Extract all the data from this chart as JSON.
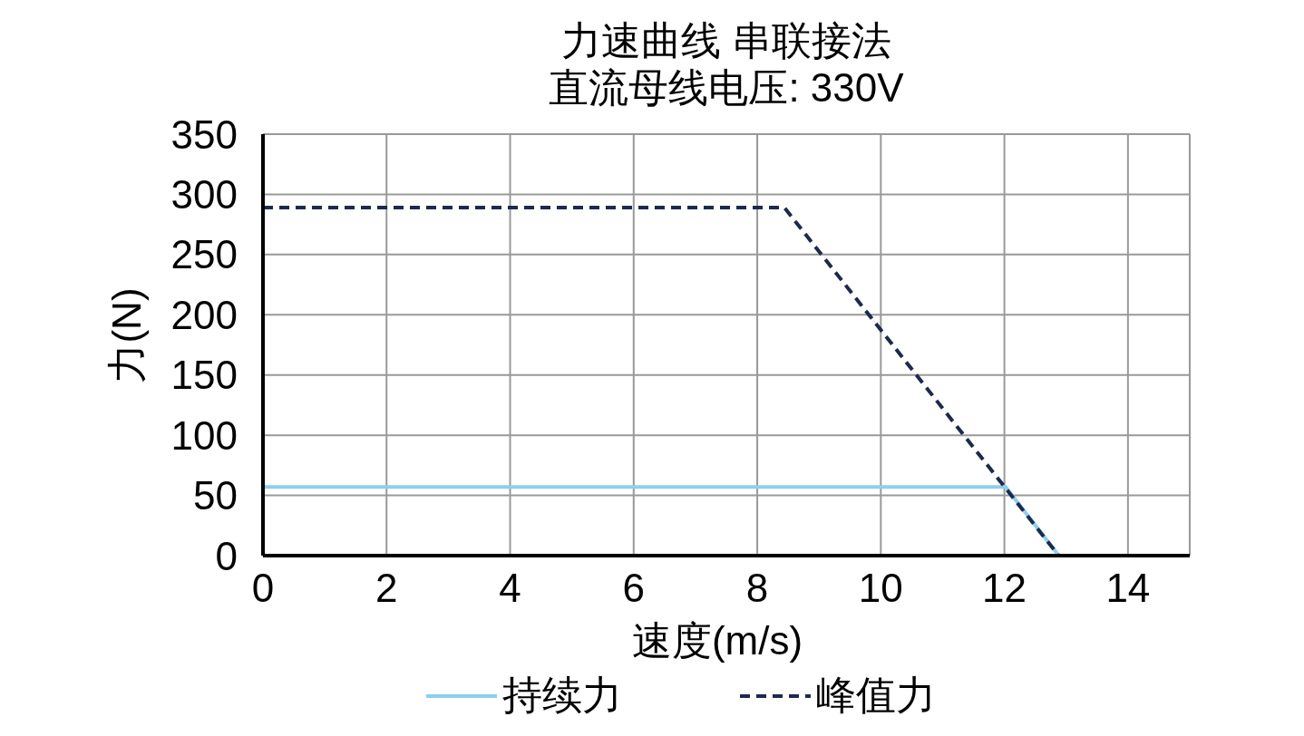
{
  "chart_data": {
    "type": "line",
    "title": "力速曲线 串联接法",
    "subtitle": "直流母线电压: 330V",
    "xlabel": "速度(m/s)",
    "ylabel": "力(N)",
    "series": [
      {
        "name": "持续力",
        "color": "#8ccff0",
        "line_style": "solid",
        "x": [
          0,
          12.02,
          12.88
        ],
        "values": [
          57,
          57,
          0
        ]
      },
      {
        "name": "峰值力",
        "color": "#1b2a4e",
        "line_style": "dashed",
        "x": [
          0,
          8.44,
          12.88
        ],
        "values": [
          289,
          289,
          0
        ]
      }
    ],
    "xlim": [
      0,
      15
    ],
    "xticks": [
      0,
      2,
      4,
      6,
      8,
      10,
      12,
      14
    ],
    "ylim": [
      0,
      350
    ],
    "yticks": [
      0,
      50,
      100,
      150,
      200,
      250,
      300,
      350
    ],
    "grid": true,
    "legend": "bottom",
    "marker": "none"
  }
}
